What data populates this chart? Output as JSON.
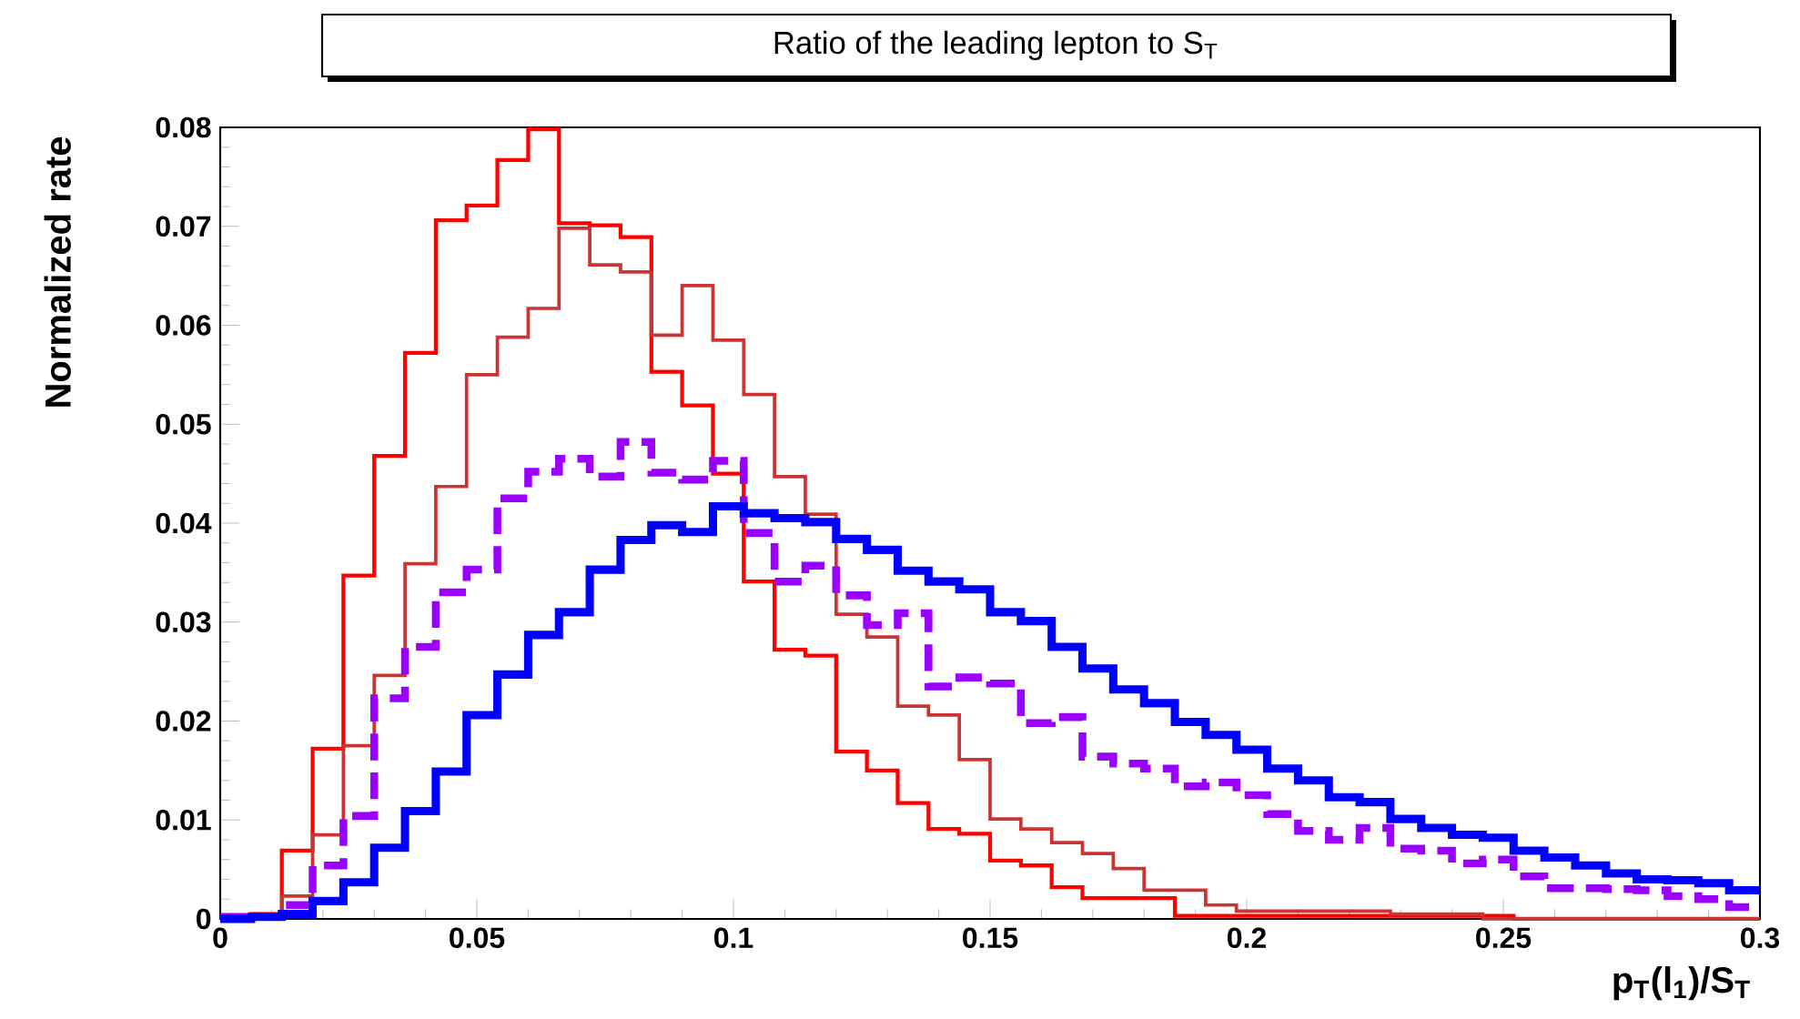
{
  "chart_data": {
    "type": "histogram",
    "title": "Ratio of the leading lepton to S$_{T}$",
    "xlabel": "p$_{T}$(l$_{1}$)/S$_{T}$",
    "ylabel": "Normalized rate",
    "bins": [
      0,
      0.006,
      0.012,
      0.018,
      0.024,
      0.03,
      0.036,
      0.042,
      0.048,
      0.054,
      0.06,
      0.066,
      0.072,
      0.078,
      0.084,
      0.09,
      0.096,
      0.102,
      0.108,
      0.114,
      0.12,
      0.126,
      0.132,
      0.138,
      0.144,
      0.15,
      0.156,
      0.162,
      0.168,
      0.174,
      0.18,
      0.186,
      0.192,
      0.198,
      0.204,
      0.21,
      0.216,
      0.222,
      0.228,
      0.234,
      0.24,
      0.246,
      0.252,
      0.258,
      0.264,
      0.27,
      0.276,
      0.282,
      0.288,
      0.294,
      0.3
    ],
    "series": [
      {
        "color": "#ff0000",
        "line_style": "solid",
        "values": [
          0.0002,
          0.0005,
          0.0069,
          0.0172,
          0.0347,
          0.0468,
          0.0572,
          0.0706,
          0.0721,
          0.0767,
          0.0798,
          0.0703,
          0.0701,
          0.0689,
          0.0553,
          0.0519,
          0.045,
          0.0341,
          0.0272,
          0.0266,
          0.0169,
          0.015,
          0.0117,
          0.0091,
          0.0086,
          0.0059,
          0.0054,
          0.0032,
          0.0021,
          0.0021,
          0.0021,
          0.0003,
          0.0003,
          0.0003,
          0.0003,
          0.0003,
          0.0003,
          0.0003,
          0.0003,
          0.0003,
          0.0003,
          0.0003,
          0,
          0,
          0,
          0,
          0,
          0,
          0,
          0
        ]
      },
      {
        "color": "#cc3333",
        "line_style": "solid",
        "values": [
          0,
          0.0005,
          0.0023,
          0.0085,
          0.0175,
          0.0246,
          0.0359,
          0.0437,
          0.055,
          0.0588,
          0.0617,
          0.0698,
          0.0661,
          0.0654,
          0.059,
          0.064,
          0.0585,
          0.053,
          0.0447,
          0.0409,
          0.0308,
          0.0285,
          0.0215,
          0.0206,
          0.0161,
          0.0101,
          0.0091,
          0.0077,
          0.0066,
          0.0051,
          0.0029,
          0.0029,
          0.0014,
          0.0008,
          0.0008,
          0.0008,
          0.0008,
          0.0008,
          0.0005,
          0.0005,
          0.0005,
          0,
          0,
          0,
          0,
          0,
          0,
          0,
          0,
          0
        ]
      },
      {
        "color": "#9900ff",
        "line_style": "dashed",
        "values": [
          0.0002,
          0.0002,
          0.0014,
          0.0054,
          0.0104,
          0.0223,
          0.0275,
          0.033,
          0.0353,
          0.0425,
          0.0452,
          0.0465,
          0.0447,
          0.0482,
          0.0451,
          0.0444,
          0.0463,
          0.039,
          0.0341,
          0.0357,
          0.0327,
          0.0297,
          0.0309,
          0.0235,
          0.0244,
          0.0238,
          0.0198,
          0.0204,
          0.0164,
          0.0157,
          0.0152,
          0.0134,
          0.0138,
          0.0125,
          0.0106,
          0.0089,
          0.008,
          0.0092,
          0.0071,
          0.0069,
          0.0056,
          0.006,
          0.0043,
          0.0031,
          0.0031,
          0.003,
          0.0029,
          0.0023,
          0.002,
          0.0012
        ]
      },
      {
        "color": "#0000ff",
        "line_style": "solid",
        "values": [
          0,
          0.0002,
          0.0005,
          0.0018,
          0.0037,
          0.0072,
          0.0109,
          0.0149,
          0.0206,
          0.0247,
          0.0287,
          0.031,
          0.0353,
          0.0383,
          0.0398,
          0.0391,
          0.0417,
          0.041,
          0.0405,
          0.0401,
          0.0384,
          0.0373,
          0.0352,
          0.0341,
          0.0333,
          0.031,
          0.0301,
          0.0275,
          0.0253,
          0.0232,
          0.0218,
          0.0199,
          0.0186,
          0.0171,
          0.0152,
          0.014,
          0.0123,
          0.0118,
          0.0101,
          0.0092,
          0.0085,
          0.0082,
          0.0069,
          0.0062,
          0.0054,
          0.0046,
          0.004,
          0.0039,
          0.0036,
          0.0029
        ]
      }
    ],
    "xlim": [
      0,
      0.3
    ],
    "ylim": [
      0,
      0.08
    ],
    "xticks": [
      0,
      0.05,
      0.1,
      0.15,
      0.2,
      0.25,
      0.3
    ],
    "yticks": [
      0,
      0.01,
      0.02,
      0.03,
      0.04,
      0.05,
      0.06,
      0.07,
      0.08
    ]
  }
}
